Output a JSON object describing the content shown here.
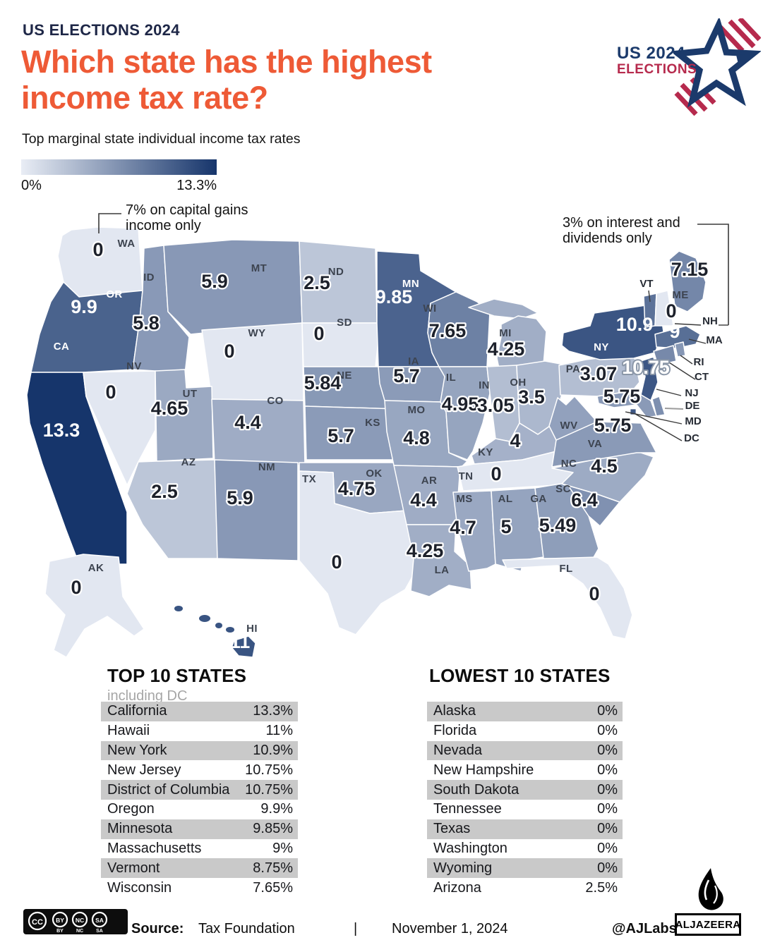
{
  "header": {
    "kicker": "US ELECTIONS 2024",
    "title_line1": "Which state has the highest",
    "title_line2": "income tax rate?",
    "subtitle": "Top marginal state individual income tax rates",
    "logo_line1": "US 2024",
    "logo_line2": "ELECTIONS"
  },
  "legend": {
    "min_label": "0%",
    "max_label": "13.3%",
    "min_color": "#e9edf5",
    "max_color": "#16356b"
  },
  "colors": {
    "title_orange": "#ee5a36",
    "kicker_navy": "#1e2747",
    "logo_navy": "#1b3a6b",
    "logo_crimson": "#b62a4d",
    "table_shade": "#c9c9c9"
  },
  "chart_data": {
    "type": "choropleth",
    "title": "Top marginal state individual income tax rates",
    "unit": "percent",
    "color_domain": [
      0,
      13.3
    ],
    "color_range": [
      "#e2e7f1",
      "#16356b"
    ],
    "annotations": [
      {
        "target": "WA",
        "text": "7% on capital gains income only"
      },
      {
        "target": "NH",
        "text": "3% on interest and dividends only"
      }
    ],
    "states": [
      {
        "abbr": "WA",
        "name": "Washington",
        "value": 0,
        "display": "0"
      },
      {
        "abbr": "OR",
        "name": "Oregon",
        "value": 9.9,
        "display": "9.9"
      },
      {
        "abbr": "CA",
        "name": "California",
        "value": 13.3,
        "display": "13.3"
      },
      {
        "abbr": "NV",
        "name": "Nevada",
        "value": 0,
        "display": "0"
      },
      {
        "abbr": "ID",
        "name": "Idaho",
        "value": 5.8,
        "display": "5.8"
      },
      {
        "abbr": "MT",
        "name": "Montana",
        "value": 5.9,
        "display": "5.9"
      },
      {
        "abbr": "WY",
        "name": "Wyoming",
        "value": 0,
        "display": "0"
      },
      {
        "abbr": "UT",
        "name": "Utah",
        "value": 4.65,
        "display": "4.65"
      },
      {
        "abbr": "CO",
        "name": "Colorado",
        "value": 4.4,
        "display": "4.4"
      },
      {
        "abbr": "AZ",
        "name": "Arizona",
        "value": 2.5,
        "display": "2.5"
      },
      {
        "abbr": "NM",
        "name": "New Mexico",
        "value": 5.9,
        "display": "5.9"
      },
      {
        "abbr": "ND",
        "name": "North Dakota",
        "value": 2.5,
        "display": "2.5"
      },
      {
        "abbr": "SD",
        "name": "South Dakota",
        "value": 0,
        "display": "0"
      },
      {
        "abbr": "NE",
        "name": "Nebraska",
        "value": 5.84,
        "display": "5.84"
      },
      {
        "abbr": "KS",
        "name": "Kansas",
        "value": 5.7,
        "display": "5.7"
      },
      {
        "abbr": "OK",
        "name": "Oklahoma",
        "value": 4.75,
        "display": "4.75"
      },
      {
        "abbr": "TX",
        "name": "Texas",
        "value": 0,
        "display": "0"
      },
      {
        "abbr": "MN",
        "name": "Minnesota",
        "value": 9.85,
        "display": "9.85"
      },
      {
        "abbr": "IA",
        "name": "Iowa",
        "value": 5.7,
        "display": "5.7"
      },
      {
        "abbr": "MO",
        "name": "Missouri",
        "value": 4.8,
        "display": "4.8"
      },
      {
        "abbr": "AR",
        "name": "Arkansas",
        "value": 4.4,
        "display": "4.4"
      },
      {
        "abbr": "LA",
        "name": "Louisiana",
        "value": 4.25,
        "display": "4.25"
      },
      {
        "abbr": "WI",
        "name": "Wisconsin",
        "value": 7.65,
        "display": "7.65"
      },
      {
        "abbr": "MI",
        "name": "Michigan",
        "value": 4.25,
        "display": "4.25"
      },
      {
        "abbr": "IL",
        "name": "Illinois",
        "value": 4.95,
        "display": "4.95"
      },
      {
        "abbr": "IN",
        "name": "Indiana",
        "value": 3.05,
        "display": "3.05"
      },
      {
        "abbr": "OH",
        "name": "Ohio",
        "value": 3.5,
        "display": "3.5"
      },
      {
        "abbr": "KY",
        "name": "Kentucky",
        "value": 4,
        "display": "4"
      },
      {
        "abbr": "TN",
        "name": "Tennessee",
        "value": 0,
        "display": "0"
      },
      {
        "abbr": "MS",
        "name": "Mississippi",
        "value": 4.7,
        "display": "4.7"
      },
      {
        "abbr": "AL",
        "name": "Alabama",
        "value": 5,
        "display": "5"
      },
      {
        "abbr": "GA",
        "name": "Georgia",
        "value": 5.49,
        "display": "5.49"
      },
      {
        "abbr": "SC",
        "name": "South Carolina",
        "value": 6.4,
        "display": "6.4"
      },
      {
        "abbr": "NC",
        "name": "North Carolina",
        "value": 4.5,
        "display": "4.5"
      },
      {
        "abbr": "VA",
        "name": "Virginia",
        "value": 5.75,
        "display": "5.75"
      },
      {
        "abbr": "WV",
        "name": "West Virginia",
        "value": null,
        "display": "",
        "fill_estimate": 5.2
      },
      {
        "abbr": "PA",
        "name": "Pennsylvania",
        "value": 3.07,
        "display": "3.07"
      },
      {
        "abbr": "NY",
        "name": "New York",
        "value": 10.9,
        "display": "10.9"
      },
      {
        "abbr": "NJ",
        "name": "New Jersey",
        "value": 10.75,
        "display": "10.75"
      },
      {
        "abbr": "VT",
        "name": "Vermont",
        "value": 8.75,
        "display": ""
      },
      {
        "abbr": "NH",
        "name": "New Hampshire",
        "value": 0,
        "display": "0"
      },
      {
        "abbr": "ME",
        "name": "Maine",
        "value": 7.15,
        "display": "7.15"
      },
      {
        "abbr": "MA",
        "name": "Massachusetts",
        "value": 9,
        "display": "9"
      },
      {
        "abbr": "RI",
        "name": "Rhode Island",
        "value": null,
        "display": "",
        "fill_estimate": 6
      },
      {
        "abbr": "CT",
        "name": "Connecticut",
        "value": null,
        "display": "",
        "fill_estimate": 7
      },
      {
        "abbr": "DE",
        "name": "Delaware",
        "value": null,
        "display": "",
        "fill_estimate": 6.6
      },
      {
        "abbr": "MD",
        "name": "Maryland",
        "value": 5.75,
        "display": "5.75"
      },
      {
        "abbr": "DC",
        "name": "District of Columbia",
        "value": 10.75,
        "display": ""
      },
      {
        "abbr": "FL",
        "name": "Florida",
        "value": 0,
        "display": "0"
      },
      {
        "abbr": "AK",
        "name": "Alaska",
        "value": 0,
        "display": "0"
      },
      {
        "abbr": "HI",
        "name": "Hawaii",
        "value": 11,
        "display": "11"
      }
    ]
  },
  "tables": {
    "top": {
      "title": "TOP 10 STATES",
      "subtitle": "including DC",
      "rows": [
        [
          "California",
          "13.3%"
        ],
        [
          "Hawaii",
          "11%"
        ],
        [
          "New York",
          "10.9%"
        ],
        [
          "New Jersey",
          "10.75%"
        ],
        [
          "District of Columbia",
          "10.75%"
        ],
        [
          "Oregon",
          "9.9%"
        ],
        [
          "Minnesota",
          "9.85%"
        ],
        [
          "Massachusetts",
          "9%"
        ],
        [
          "Vermont",
          "8.75%"
        ],
        [
          "Wisconsin",
          "7.65%"
        ]
      ]
    },
    "lowest": {
      "title": "LOWEST 10 STATES",
      "rows": [
        [
          "Alaska",
          "0%"
        ],
        [
          "Florida",
          "0%"
        ],
        [
          "Nevada",
          "0%"
        ],
        [
          "New Hampshire",
          "0%"
        ],
        [
          "South Dakota",
          "0%"
        ],
        [
          "Tennessee",
          "0%"
        ],
        [
          "Texas",
          "0%"
        ],
        [
          "Washington",
          "0%"
        ],
        [
          "Wyoming",
          "0%"
        ],
        [
          "Arizona",
          "2.5%"
        ]
      ]
    }
  },
  "footer": {
    "license_parts": [
      "CC",
      "BY",
      "NC",
      "SA"
    ],
    "source_label": "Source:",
    "source": "Tax Foundation",
    "separator": "|",
    "date": "November 1, 2024",
    "credit": "@AJLabs",
    "brand": "ALJAZEERA"
  }
}
